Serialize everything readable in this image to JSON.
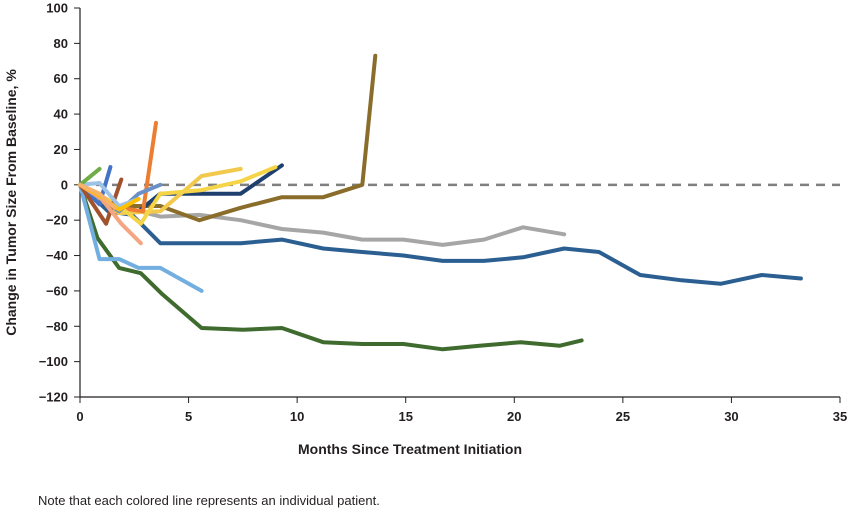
{
  "chart_data": {
    "type": "line",
    "title": "",
    "xlabel": "Months Since Treatment Initiation",
    "ylabel": "Change in Tumor Size From Baseline, %",
    "xlim": [
      0,
      35
    ],
    "ylim": [
      -120,
      100
    ],
    "x_ticks": [
      0,
      5,
      10,
      15,
      20,
      25,
      30,
      35
    ],
    "x_tick_labels": [
      "0",
      "5",
      "10",
      "15",
      "20",
      "25",
      "30",
      "35"
    ],
    "y_ticks": [
      100,
      80,
      60,
      40,
      20,
      0,
      -20,
      -40,
      -60,
      -80,
      -100,
      -120
    ],
    "y_tick_labels": [
      "100",
      "80",
      "60",
      "40",
      "20",
      "0",
      "−20",
      "−40",
      "−60",
      "−80",
      "−100",
      "−120"
    ],
    "reference_line": {
      "y": 0,
      "style": "dashed",
      "color": "#808080"
    },
    "grid": false,
    "legend": "none",
    "series": [
      {
        "name": "Patient (dark green)",
        "color": "#3f6b2f",
        "x": [
          0,
          0.8,
          1.8,
          2.8,
          3.8,
          5.6,
          7.5,
          9.3,
          11.2,
          13,
          14.9,
          16.7,
          18.4,
          20.3,
          22.1,
          23.1
        ],
        "y": [
          0,
          -30,
          -47,
          -50,
          -62,
          -81,
          -82,
          -81,
          -89,
          -90,
          -90,
          -93,
          -91,
          -89,
          -91,
          -88
        ]
      },
      {
        "name": "Patient (dark blue, longest)",
        "color": "#2c5f91",
        "x": [
          0,
          1.3,
          2.4,
          3.7,
          5.5,
          7.4,
          9.3,
          11.2,
          13,
          14.9,
          16.7,
          18.6,
          20.4,
          22.3,
          23.9,
          25.8,
          27.7,
          29.5,
          31.4,
          33.2
        ],
        "y": [
          0,
          -15,
          -17,
          -33,
          -33,
          -33,
          -31,
          -36,
          -38,
          -40,
          -43,
          -43,
          -41,
          -36,
          -38,
          -51,
          -54,
          -56,
          -51,
          -53
        ]
      },
      {
        "name": "Patient (gray)",
        "color": "#a6a6a6",
        "x": [
          0,
          1.8,
          3.7,
          5.5,
          7.4,
          9.3,
          11.2,
          13,
          14.9,
          16.7,
          18.6,
          20.4,
          22.3
        ],
        "y": [
          0,
          -12,
          -18,
          -17,
          -20,
          -25,
          -27,
          -31,
          -31,
          -34,
          -31,
          -24,
          -28
        ]
      },
      {
        "name": "Patient (olive brown)",
        "color": "#8a6d2b",
        "x": [
          0,
          1.8,
          3.7,
          5.5,
          7.4,
          9.3,
          11.2,
          13,
          13.6
        ],
        "y": [
          0,
          -12,
          -12,
          -20,
          -13,
          -7,
          -7,
          0,
          73
        ]
      },
      {
        "name": "Patient (light blue)",
        "color": "#72aee0",
        "x": [
          0,
          0.9,
          1.8,
          2.7,
          3.7,
          5.6
        ],
        "y": [
          0,
          -42,
          -42,
          -47,
          -47,
          -60
        ]
      },
      {
        "name": "Patient (navy)",
        "color": "#1f3f6e",
        "x": [
          0,
          1.8,
          2.7,
          3.7,
          5.5,
          7.4,
          9.3
        ],
        "y": [
          0,
          -15,
          -15,
          -5,
          -5,
          -5,
          11
        ]
      },
      {
        "name": "Patient (yellow)",
        "color": "#f2c94c",
        "x": [
          0,
          1.8,
          3.7,
          5.6,
          7.4
        ],
        "y": [
          0,
          -16,
          -15,
          5,
          9
        ]
      },
      {
        "name": "Patient (orange)",
        "color": "#ed7d31",
        "x": [
          0,
          1.8,
          2.9,
          3.5
        ],
        "y": [
          0,
          -13,
          -15,
          35
        ]
      },
      {
        "name": "Patient (gold)",
        "color": "#f5d547",
        "x": [
          0,
          1.8,
          2.8,
          3.7,
          5.6,
          7.4,
          9.0
        ],
        "y": [
          0,
          -12,
          -22,
          -5,
          -3,
          2,
          10
        ]
      },
      {
        "name": "Patient (steel blue)",
        "color": "#4472c4",
        "x": [
          0,
          0.9,
          1.4
        ],
        "y": [
          0,
          -11,
          10
        ]
      },
      {
        "name": "Patient (slate blue)",
        "color": "#6b8fc7",
        "x": [
          0,
          1.8,
          2.7,
          3.7
        ],
        "y": [
          0,
          -15,
          -5,
          0
        ]
      },
      {
        "name": "Patient (brown red)",
        "color": "#a0522d",
        "x": [
          0,
          1.2,
          1.9
        ],
        "y": [
          0,
          -22,
          3
        ]
      },
      {
        "name": "Patient (salmon)",
        "color": "#f4a582",
        "x": [
          0,
          1.0,
          1.9,
          2.8
        ],
        "y": [
          0,
          -8,
          -22,
          -33
        ]
      },
      {
        "name": "Patient (sky blue)",
        "color": "#9dc3e6",
        "x": [
          0,
          0.9,
          1.8,
          2.7
        ],
        "y": [
          0,
          1,
          -12,
          -8
        ]
      },
      {
        "name": "Patient (amber)",
        "color": "#ffc000",
        "x": [
          0,
          0.9,
          1.8,
          2.7
        ],
        "y": [
          0,
          -6,
          -14,
          -8
        ]
      },
      {
        "name": "Patient (light green)",
        "color": "#70ad47",
        "x": [
          0,
          0.9
        ],
        "y": [
          0,
          9
        ]
      },
      {
        "name": "Patient (light orange)",
        "color": "#f8b26a",
        "x": [
          0,
          0.9,
          1.6
        ],
        "y": [
          0,
          -5,
          -13
        ]
      }
    ]
  },
  "footnote": "Note that each colored line represents an individual patient."
}
